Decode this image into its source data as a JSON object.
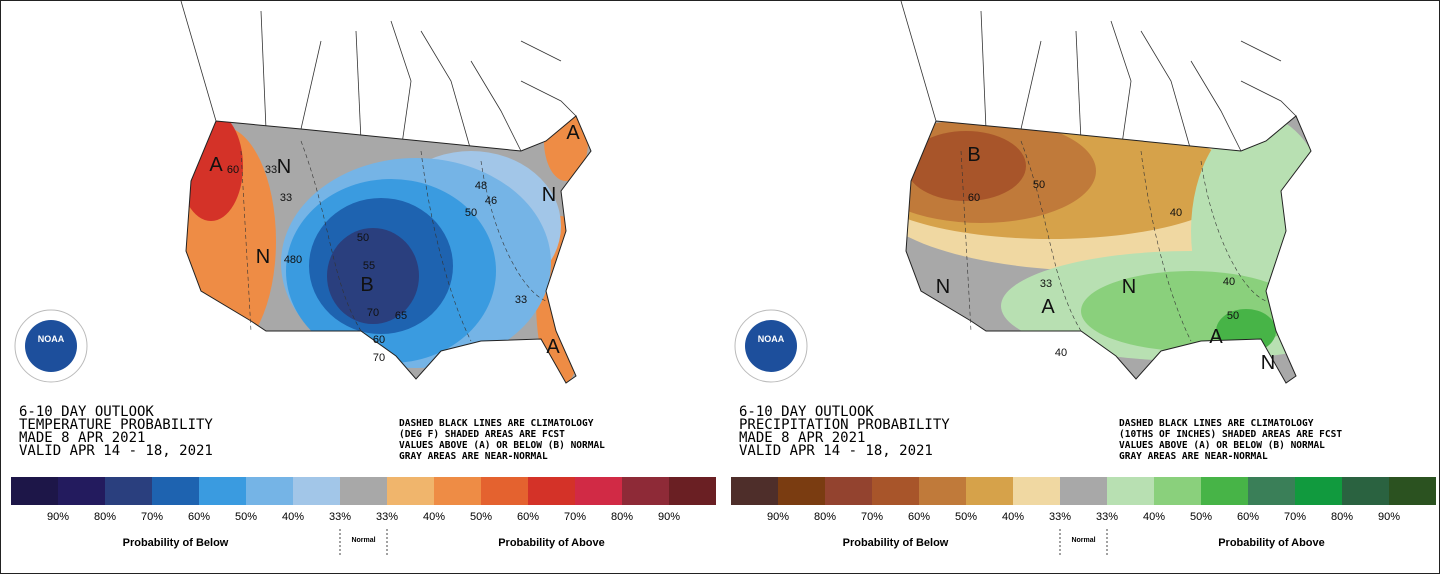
{
  "panels": [
    {
      "heading": [
        "6-10 DAY OUTLOOK",
        "TEMPERATURE PROBABILITY",
        "MADE  8 APR 2021",
        "VALID  APR 14 - 18, 2021"
      ],
      "notes": [
        "DASHED BLACK LINES ARE CLIMATOLOGY",
        "(DEG F) SHADED AREAS ARE FCST",
        "VALUES ABOVE (A) OR BELOW (B) NORMAL",
        "GRAY AREAS ARE NEAR-NORMAL"
      ],
      "map_labels": [
        "A",
        "60",
        "33",
        "N",
        "33",
        "N",
        "480",
        "50",
        "55",
        "B",
        "70",
        "65",
        "60",
        "70",
        "48",
        "46",
        "50",
        "A",
        "N",
        "33",
        "A"
      ],
      "logo_text": "NOAA",
      "legend": {
        "colors": [
          "#1d1648",
          "#231b5e",
          "#2a3f7e",
          "#1e63b0",
          "#3a9be0",
          "#75b4e6",
          "#a2c6e8",
          "#a8a8a8",
          "#f0b56c",
          "#ee8c45",
          "#e4622f",
          "#d43228",
          "#d12a45",
          "#8e2a37",
          "#6a1f23"
        ],
        "ticks": [
          "90%",
          "80%",
          "70%",
          "60%",
          "50%",
          "40%",
          "33%",
          "33%",
          "40%",
          "50%",
          "60%",
          "70%",
          "80%",
          "90%"
        ],
        "below": "Probability of Below",
        "normal": "Normal",
        "above": "Probability of Above"
      }
    },
    {
      "heading": [
        "6-10 DAY OUTLOOK",
        "PRECIPITATION PROBABILITY",
        "MADE  8 APR 2021",
        "VALID  APR 14 - 18, 2021"
      ],
      "notes": [
        "DASHED BLACK LINES ARE CLIMATOLOGY",
        "(10THS OF INCHES) SHADED AREAS ARE FCST",
        "VALUES ABOVE (A) OR BELOW (B) NORMAL",
        "GRAY AREAS ARE NEAR-NORMAL"
      ],
      "map_labels": [
        "B",
        "60",
        "50",
        "40",
        "N",
        "33",
        "N",
        "A",
        "40",
        "40",
        "50",
        "A",
        "N"
      ],
      "logo_text": "NOAA",
      "legend": {
        "colors": [
          "#4e2e2a",
          "#7a3c11",
          "#93432f",
          "#a8552a",
          "#c07a3a",
          "#d6a24a",
          "#f0d8a2",
          "#a8a8a8",
          "#b8e0b2",
          "#8ad07c",
          "#47b447",
          "#3a7f58",
          "#119a3e",
          "#2a6240",
          "#2b5220"
        ],
        "ticks": [
          "90%",
          "80%",
          "70%",
          "60%",
          "50%",
          "40%",
          "33%",
          "33%",
          "40%",
          "50%",
          "60%",
          "70%",
          "80%",
          "90%"
        ],
        "below": "Probability of Below",
        "normal": "Normal",
        "above": "Probability of Above"
      }
    }
  ]
}
